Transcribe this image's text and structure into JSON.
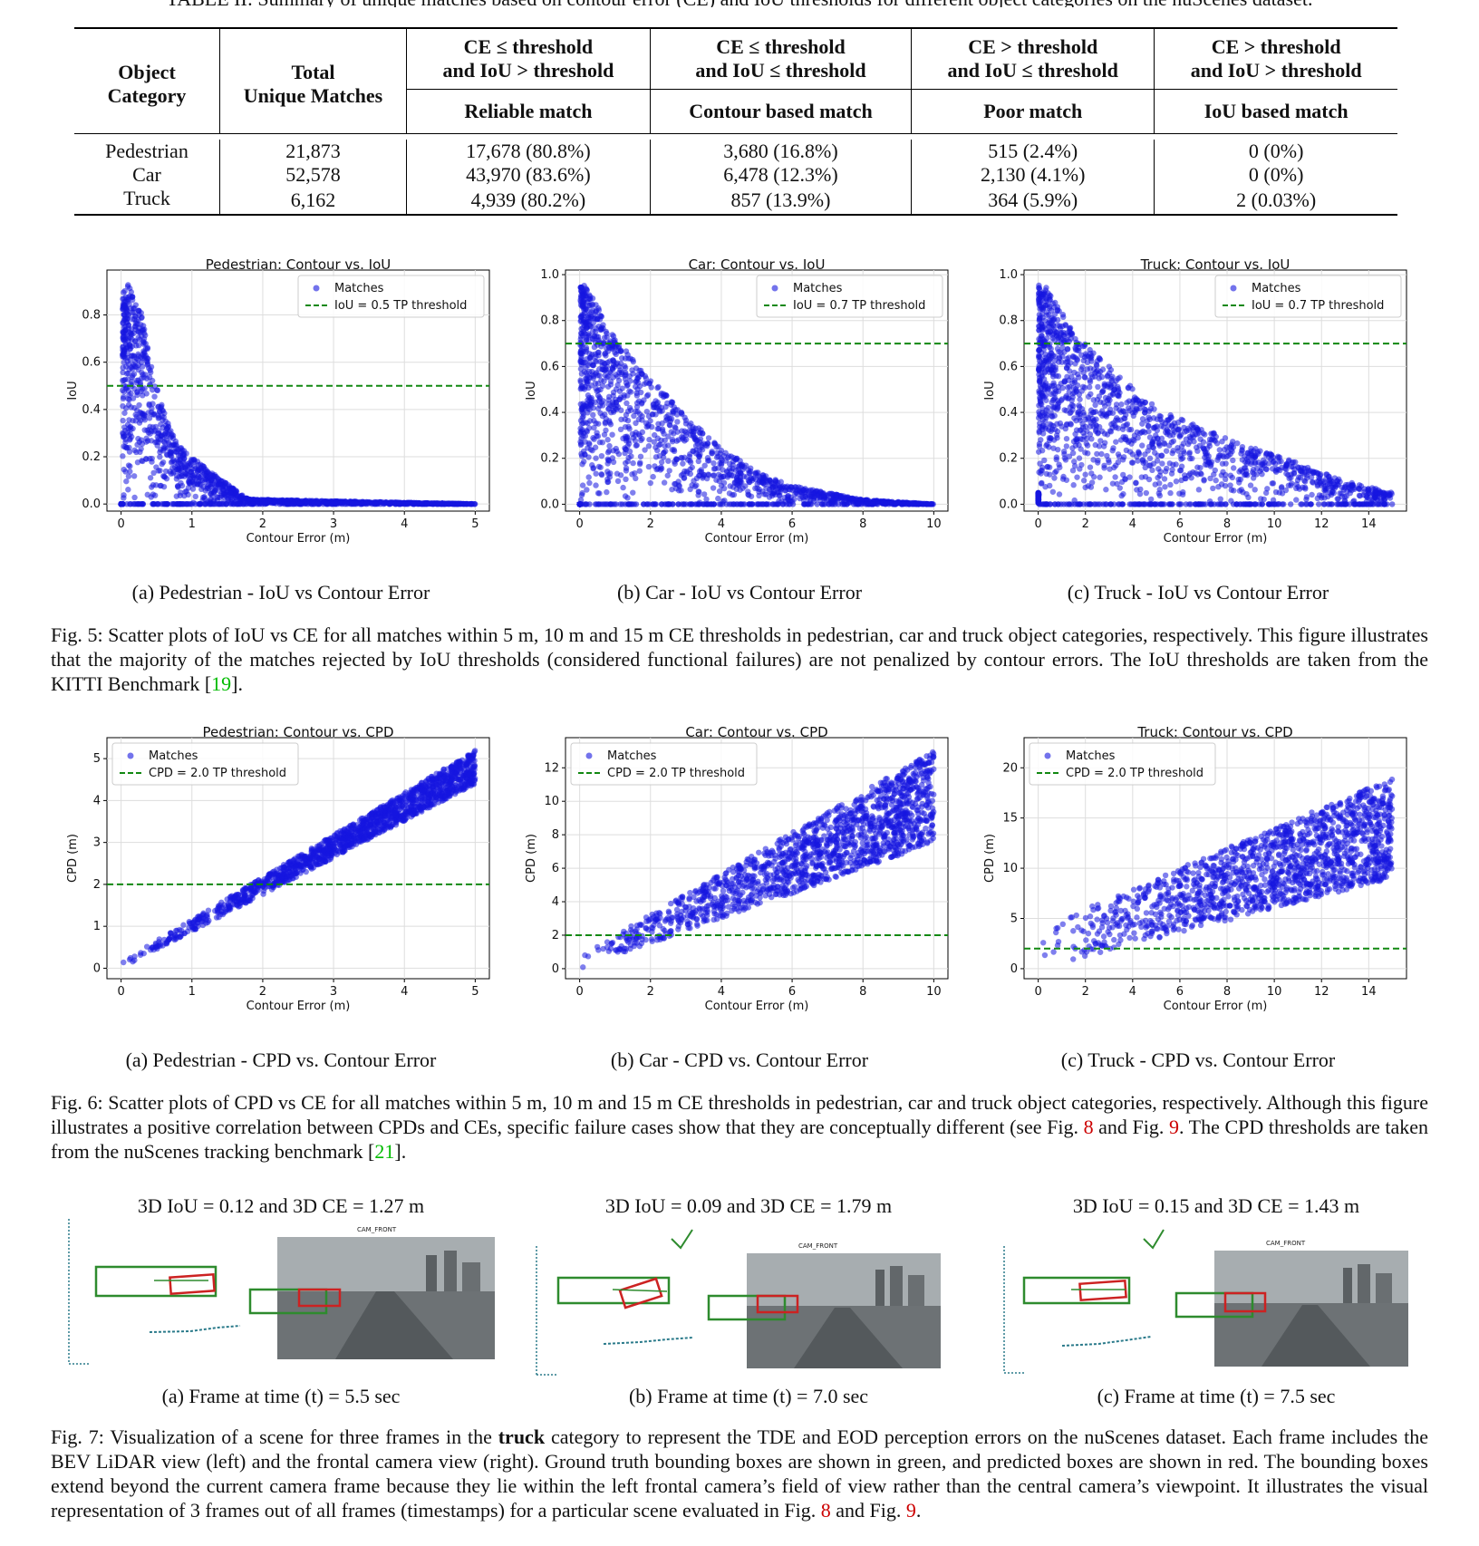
{
  "table": {
    "caption_top": "TABLE II: Summary of unique matches based on contour error (CE) and IoU thresholds for different object categories on the nuScenes dataset.",
    "col1_header_1": "Object",
    "col1_header_2": "Category",
    "col2_header_1": "Total",
    "col2_header_2": "Unique Matches",
    "cond_headers": [
      {
        "line1": "CE ≤ threshold",
        "line2": "and IoU > threshold",
        "label": "Reliable match"
      },
      {
        "line1": "CE ≤ threshold",
        "line2": "and IoU ≤ threshold",
        "label": "Contour based match"
      },
      {
        "line1": "CE > threshold",
        "line2": "and IoU ≤ threshold",
        "label": "Poor match"
      },
      {
        "line1": "CE > threshold",
        "line2": "and IoU > threshold",
        "label": "IoU based match"
      }
    ],
    "rows": [
      {
        "category": "Pedestrian",
        "total": "21,873",
        "c1": "17,678 (80.8%)",
        "c2": "3,680 (16.8%)",
        "c3": "515 (2.4%)",
        "c4": "0 (0%)"
      },
      {
        "category": "Car",
        "total": "52,578",
        "c1": "43,970 (83.6%)",
        "c2": "6,478 (12.3%)",
        "c3": "2,130 (4.1%)",
        "c4": "0 (0%)"
      },
      {
        "category": "Truck",
        "total": "6,162",
        "c1": "4,939 (80.2%)",
        "c2": "857 (13.9%)",
        "c3": "364 (5.9%)",
        "c4": "2 (0.03%)"
      }
    ]
  },
  "chart_data": [
    {
      "type": "scatter",
      "title": "Pedestrian: Contour vs. IoU",
      "xlabel": "Contour Error (m)",
      "ylabel": "IoU",
      "xlim": [
        -0.2,
        5.2
      ],
      "ylim": [
        -0.03,
        0.99
      ],
      "xticks": [
        0,
        1,
        2,
        3,
        4,
        5
      ],
      "yticks": [
        0.0,
        0.2,
        0.4,
        0.6,
        0.8
      ],
      "threshold": 0.5,
      "legend": [
        "Matches",
        "IoU = 0.5 TP threshold"
      ],
      "legend_placement": "top-right",
      "grid": true,
      "envelope": [
        [
          0.02,
          0.9
        ],
        [
          0.1,
          0.93
        ],
        [
          0.3,
          0.8
        ],
        [
          0.45,
          0.55
        ],
        [
          0.6,
          0.4
        ],
        [
          0.8,
          0.25
        ],
        [
          1.2,
          0.15
        ],
        [
          1.8,
          0.02
        ],
        [
          5,
          0.0
        ]
      ],
      "color": "#1515e0"
    },
    {
      "type": "scatter",
      "title": "Car: Contour vs. IoU",
      "xlabel": "Contour Error (m)",
      "ylabel": "IoU",
      "xlim": [
        -0.4,
        10.4
      ],
      "ylim": [
        -0.03,
        1.02
      ],
      "xticks": [
        0,
        2,
        4,
        6,
        8,
        10
      ],
      "yticks": [
        0.0,
        0.2,
        0.4,
        0.6,
        0.8,
        1.0
      ],
      "threshold": 0.7,
      "legend": [
        "Matches",
        "IoU = 0.7 TP threshold"
      ],
      "legend_placement": "top-right",
      "grid": true,
      "envelope": [
        [
          0.02,
          0.96
        ],
        [
          0.2,
          0.95
        ],
        [
          1.0,
          0.72
        ],
        [
          2,
          0.55
        ],
        [
          3,
          0.38
        ],
        [
          4,
          0.25
        ],
        [
          5,
          0.14
        ],
        [
          6,
          0.08
        ],
        [
          7,
          0.05
        ],
        [
          8,
          0.02
        ],
        [
          10,
          0.0
        ]
      ],
      "color": "#1515e0"
    },
    {
      "type": "scatter",
      "title": "Truck: Contour vs. IoU",
      "xlabel": "Contour Error (m)",
      "ylabel": "IoU",
      "xlim": [
        -0.6,
        15.6
      ],
      "ylim": [
        -0.03,
        1.02
      ],
      "xticks": [
        0,
        2,
        4,
        6,
        8,
        10,
        12,
        14
      ],
      "yticks": [
        0.0,
        0.2,
        0.4,
        0.6,
        0.8,
        1.0
      ],
      "threshold": 0.7,
      "legend": [
        "Matches",
        "IoU = 0.7 TP threshold"
      ],
      "legend_placement": "top-right",
      "grid": true,
      "envelope": [
        [
          0.02,
          0.96
        ],
        [
          0.3,
          0.95
        ],
        [
          1.5,
          0.75
        ],
        [
          3,
          0.6
        ],
        [
          5,
          0.42
        ],
        [
          7,
          0.33
        ],
        [
          9,
          0.25
        ],
        [
          11,
          0.18
        ],
        [
          13,
          0.1
        ],
        [
          15,
          0.05
        ]
      ],
      "color": "#1515e0"
    },
    {
      "type": "scatter",
      "title": "Pedestrian: Contour vs. CPD",
      "xlabel": "Contour Error (m)",
      "ylabel": "CPD (m)",
      "xlim": [
        -0.2,
        5.2
      ],
      "ylim": [
        -0.25,
        5.5
      ],
      "xticks": [
        0,
        1,
        2,
        3,
        4,
        5
      ],
      "yticks": [
        0,
        1,
        2,
        3,
        4,
        5
      ],
      "threshold": 2.0,
      "legend": [
        "Matches",
        "CPD = 2.0 TP threshold"
      ],
      "legend_placement": "top-left",
      "grid": true,
      "band": {
        "x0": 0,
        "x1": 5,
        "low0": 0,
        "low1": 4.4,
        "high0": 0.15,
        "high1": 5.2
      },
      "color": "#1515e0"
    },
    {
      "type": "scatter",
      "title": "Car: Contour vs. CPD",
      "xlabel": "Contour Error (m)",
      "ylabel": "CPD (m)",
      "xlim": [
        -0.4,
        10.4
      ],
      "ylim": [
        -0.6,
        13.8
      ],
      "xticks": [
        0,
        2,
        4,
        6,
        8,
        10
      ],
      "yticks": [
        0,
        2,
        4,
        6,
        8,
        10,
        12
      ],
      "threshold": 2.0,
      "legend": [
        "Matches",
        "CPD = 2.0 TP threshold"
      ],
      "legend_placement": "top-left",
      "grid": true,
      "band": {
        "x0": 0,
        "x1": 10,
        "low0": 0,
        "low1": 7.5,
        "high0": 0.8,
        "high1": 13
      },
      "color": "#1515e0"
    },
    {
      "type": "scatter",
      "title": "Truck: Contour vs. CPD",
      "xlabel": "Contour Error (m)",
      "ylabel": "CPD (m)",
      "xlim": [
        -0.6,
        15.6
      ],
      "ylim": [
        -1,
        23
      ],
      "xticks": [
        0,
        2,
        4,
        6,
        8,
        10,
        12,
        14
      ],
      "yticks": [
        0,
        5,
        10,
        15,
        20
      ],
      "threshold": 2.0,
      "legend": [
        "Matches",
        "CPD = 2.0 TP threshold"
      ],
      "legend_placement": "top-left",
      "grid": true,
      "band": {
        "x0": 0,
        "x1": 15,
        "low0": 0,
        "low1": 9,
        "high0": 4,
        "high1": 19
      },
      "color": "#1515e0"
    }
  ],
  "fig5": {
    "subcaptions": [
      "(a) Pedestrian - IoU vs Contour Error",
      "(b) Car - IoU vs Contour Error",
      "(c) Truck - IoU vs Contour Error"
    ],
    "caption_a": "Fig. 5: Scatter plots of IoU vs CE for all matches within 5 m, 10 m and 15 m CE thresholds in pedestrian, car and truck object categories, respectively. This figure illustrates that the majority of the matches rejected by IoU thresholds (considered functional failures) are not penalized by contour errors. The IoU thresholds are taken from the KITTI Benchmark [",
    "ref": "19",
    "caption_b": "]."
  },
  "fig6": {
    "subcaptions": [
      "(a) Pedestrian - CPD vs. Contour Error",
      "(b) Car - CPD vs. Contour Error",
      "(c) Truck - CPD vs. Contour Error"
    ],
    "caption_a": "Fig. 6: Scatter plots of CPD vs CE for all matches within 5 m, 10 m and 15 m CE thresholds in pedestrian, car and truck object categories, respectively. Although this figure illustrates a positive correlation between CPDs and CEs, specific failure cases show that they are conceptually different (see Fig. ",
    "ref1": "8",
    "caption_b": " and Fig. ",
    "ref2": "9",
    "caption_c": ". The CPD thresholds are taken from the nuScenes tracking benchmark [",
    "ref3": "21",
    "caption_d": "]."
  },
  "fig7": {
    "titles": [
      "3D IoU = 0.12 and 3D CE = 1.27 m",
      "3D IoU = 0.09 and 3D CE = 1.79 m",
      "3D IoU = 0.15 and 3D CE = 1.43 m"
    ],
    "camera_label": "CAM_FRONT",
    "subcaptions": [
      "(a) Frame at time (t) = 5.5 sec",
      "(b) Frame at time (t) = 7.0 sec",
      "(c) Frame at time (t) = 7.5 sec"
    ],
    "caption_a": "Fig. 7: Visualization of a scene for three frames in the ",
    "caption_bold": "truck",
    "caption_b": " category to represent the TDE and EOD perception errors on the nuScenes dataset. Each frame includes the BEV LiDAR view (left) and the frontal camera view (right). Ground truth bounding boxes are shown in green, and predicted boxes are shown in red. The bounding boxes extend beyond the current camera frame because they lie within the left frontal camera’s field of view rather than the central camera’s viewpoint. It illustrates the visual representation of 3 frames out of all frames (timestamps) for a particular scene evaluated in Fig. ",
    "ref1": "8",
    "caption_c": " and Fig. ",
    "ref2": "9",
    "caption_d": ".",
    "colors": {
      "ground_truth": "#2e8b2e",
      "predicted": "#cc2222",
      "lidar": "#2a7a8a"
    }
  }
}
